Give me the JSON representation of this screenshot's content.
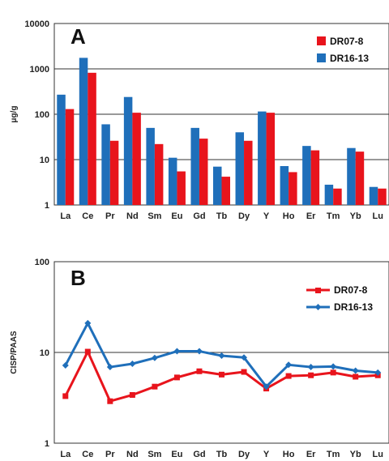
{
  "colors": {
    "series1": "#e8141c",
    "series2": "#1f6fba"
  },
  "chart_data": [
    {
      "type": "bar",
      "panel_label": "A",
      "ylabel": "μg/g",
      "yscale": "log",
      "ylim": [
        1,
        10000
      ],
      "yticks": [
        "1",
        "10",
        "100",
        "1000",
        "10000"
      ],
      "legend_position": "top-right",
      "categories": [
        "La",
        "Ce",
        "Pr",
        "Nd",
        "Sm",
        "Eu",
        "Gd",
        "Tb",
        "Dy",
        "Y",
        "Ho",
        "Er",
        "Tm",
        "Yb",
        "Lu"
      ],
      "series": [
        {
          "name": "DR07-8",
          "color": "#e8141c",
          "values": [
            130,
            820,
            26,
            108,
            22,
            5.5,
            29,
            4.2,
            26,
            108,
            5.3,
            16,
            2.3,
            15,
            2.3
          ]
        },
        {
          "name": "DR16-13",
          "color": "#1f6fba",
          "values": [
            270,
            1750,
            60,
            240,
            50,
            11,
            50,
            7,
            40,
            115,
            7.2,
            20,
            2.8,
            18,
            2.5
          ]
        }
      ]
    },
    {
      "type": "line",
      "panel_label": "B",
      "ylabel": "CISP/PAAS",
      "yscale": "log",
      "ylim": [
        1,
        100
      ],
      "yticks": [
        "1",
        "10",
        "100"
      ],
      "legend_position": "top-right",
      "categories": [
        "La",
        "Ce",
        "Pr",
        "Nd",
        "Sm",
        "Eu",
        "Gd",
        "Tb",
        "Dy",
        "Y",
        "Ho",
        "Er",
        "Tm",
        "Yb",
        "Lu"
      ],
      "series": [
        {
          "name": "DR07-8",
          "color": "#e8141c",
          "marker": "square",
          "values": [
            3.3,
            10.2,
            2.9,
            3.4,
            4.2,
            5.3,
            6.2,
            5.7,
            6.1,
            4.0,
            5.5,
            5.6,
            6.0,
            5.4,
            5.6
          ]
        },
        {
          "name": "DR16-13",
          "color": "#1f6fba",
          "marker": "diamond",
          "values": [
            7.2,
            21,
            6.9,
            7.5,
            8.7,
            10.3,
            10.3,
            9.2,
            8.8,
            4.2,
            7.3,
            6.9,
            7.0,
            6.3,
            6.0
          ]
        }
      ]
    }
  ]
}
